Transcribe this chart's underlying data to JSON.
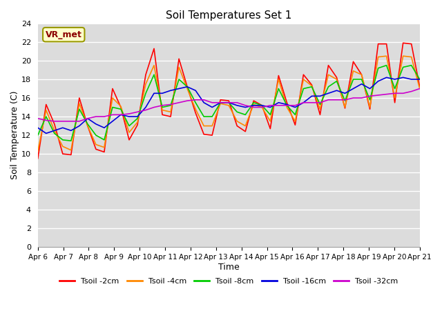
{
  "title": "Soil Temperatures Set 1",
  "xlabel": "Time",
  "ylabel": "Soil Temperature (C)",
  "ylim": [
    0,
    24
  ],
  "yticks": [
    0,
    2,
    4,
    6,
    8,
    10,
    12,
    14,
    16,
    18,
    20,
    22,
    24
  ],
  "xtick_labels": [
    "Apr 6",
    "Apr 7",
    "Apr 8",
    "Apr 9",
    "Apr 10",
    "Apr 11",
    "Apr 12",
    "Apr 13",
    "Apr 14",
    "Apr 15",
    "Apr 16",
    "Apr 17",
    "Apr 18",
    "Apr 19",
    "Apr 20",
    "Apr 21"
  ],
  "annotation_text": "VR_met",
  "background_color": "#dcdcdc",
  "plot_bg_color": "#dcdcdc",
  "grid_color": "#ffffff",
  "fig_bg_color": "#ffffff",
  "colors": {
    "Tsoil -2cm": "#ff0000",
    "Tsoil -4cm": "#ff8800",
    "Tsoil -8cm": "#00cc00",
    "Tsoil -16cm": "#0000dd",
    "Tsoil -32cm": "#cc00cc"
  },
  "series": {
    "Tsoil -2cm": [
      9.5,
      15.3,
      13.2,
      10.0,
      9.9,
      16.0,
      13.0,
      10.5,
      10.2,
      17.0,
      15.0,
      11.5,
      13.1,
      18.5,
      21.3,
      14.2,
      14.0,
      20.2,
      17.2,
      14.4,
      12.1,
      12.0,
      15.8,
      15.7,
      13.0,
      12.4,
      15.7,
      15.2,
      12.7,
      18.4,
      15.5,
      13.1,
      18.5,
      17.4,
      14.2,
      19.5,
      18.2,
      14.9,
      19.9,
      18.5,
      14.8,
      21.8,
      21.8,
      15.5,
      21.9,
      21.8,
      17.2
    ],
    "Tsoil -4cm": [
      10.3,
      14.7,
      12.5,
      10.8,
      10.4,
      15.4,
      13.0,
      11.0,
      10.7,
      16.0,
      15.1,
      12.3,
      13.4,
      17.5,
      19.5,
      14.7,
      14.5,
      19.3,
      17.0,
      14.8,
      13.0,
      13.0,
      15.4,
      15.2,
      13.5,
      13.0,
      15.3,
      15.0,
      13.5,
      18.0,
      15.0,
      13.5,
      18.0,
      17.3,
      14.8,
      18.5,
      18.0,
      15.0,
      18.9,
      18.5,
      15.0,
      20.4,
      20.5,
      16.0,
      20.5,
      20.4,
      17.0
    ],
    "Tsoil -8cm": [
      12.0,
      14.0,
      12.2,
      11.5,
      11.4,
      14.8,
      13.2,
      12.0,
      11.5,
      15.0,
      14.8,
      13.0,
      13.8,
      16.5,
      18.5,
      15.0,
      15.2,
      18.0,
      17.2,
      15.5,
      14.0,
      14.0,
      15.5,
      15.5,
      14.5,
      14.2,
      15.5,
      15.2,
      14.2,
      17.0,
      15.2,
      14.2,
      17.0,
      17.2,
      15.3,
      17.2,
      17.8,
      15.7,
      18.0,
      18.0,
      15.8,
      19.2,
      19.5,
      17.0,
      19.3,
      19.5,
      18.0
    ],
    "Tsoil -16cm": [
      12.8,
      12.2,
      12.5,
      12.8,
      12.5,
      13.0,
      13.8,
      13.2,
      12.8,
      13.5,
      14.2,
      14.0,
      14.0,
      15.0,
      16.5,
      16.5,
      16.8,
      17.0,
      17.2,
      16.8,
      15.5,
      15.0,
      15.5,
      15.5,
      15.2,
      15.0,
      15.2,
      15.2,
      15.0,
      15.5,
      15.3,
      15.0,
      15.5,
      16.2,
      16.2,
      16.5,
      16.8,
      16.5,
      17.0,
      17.5,
      17.0,
      17.8,
      18.2,
      18.0,
      18.2,
      18.0,
      18.0
    ],
    "Tsoil -32cm": [
      13.8,
      13.6,
      13.5,
      13.5,
      13.5,
      13.5,
      13.8,
      14.0,
      14.0,
      14.2,
      14.2,
      14.3,
      14.5,
      14.7,
      15.0,
      15.2,
      15.3,
      15.5,
      15.7,
      15.8,
      15.8,
      15.5,
      15.5,
      15.5,
      15.5,
      15.2,
      15.0,
      15.0,
      15.2,
      15.2,
      15.2,
      15.2,
      15.5,
      15.5,
      15.5,
      15.8,
      15.8,
      15.8,
      16.0,
      16.0,
      16.2,
      16.3,
      16.4,
      16.5,
      16.5,
      16.7,
      17.0
    ]
  },
  "n_points": 47,
  "legend_labels": [
    "Tsoil -2cm",
    "Tsoil -4cm",
    "Tsoil -8cm",
    "Tsoil -16cm",
    "Tsoil -32cm"
  ]
}
